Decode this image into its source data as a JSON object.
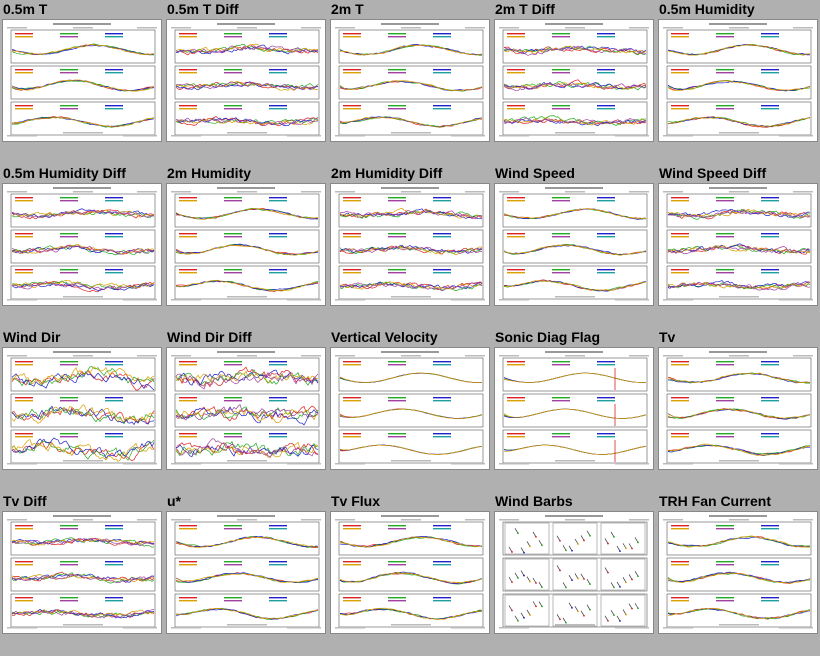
{
  "panels": [
    {
      "title": "0.5m T",
      "kind": "line",
      "diff": false
    },
    {
      "title": "0.5m T Diff",
      "kind": "line",
      "diff": true
    },
    {
      "title": "2m T",
      "kind": "line",
      "diff": false
    },
    {
      "title": "2m T Diff",
      "kind": "line",
      "diff": true
    },
    {
      "title": "0.5m Humidity",
      "kind": "line",
      "diff": false
    },
    {
      "title": "0.5m Humidity Diff",
      "kind": "line",
      "diff": true
    },
    {
      "title": "2m Humidity",
      "kind": "line",
      "diff": false
    },
    {
      "title": "2m Humidity Diff",
      "kind": "line",
      "diff": true
    },
    {
      "title": "Wind Speed",
      "kind": "line",
      "diff": false
    },
    {
      "title": "Wind Speed Diff",
      "kind": "line",
      "diff": true
    },
    {
      "title": "Wind Dir",
      "kind": "winddir",
      "diff": false
    },
    {
      "title": "Wind Dir Diff",
      "kind": "winddir",
      "diff": true
    },
    {
      "title": "Vertical Velocity",
      "kind": "flat",
      "diff": false
    },
    {
      "title": "Sonic Diag Flag",
      "kind": "flag",
      "diff": false
    },
    {
      "title": "Tv",
      "kind": "line",
      "diff": false
    },
    {
      "title": "Tv Diff",
      "kind": "line",
      "diff": true
    },
    {
      "title": "u*",
      "kind": "line",
      "diff": false
    },
    {
      "title": "Tv Flux",
      "kind": "line",
      "diff": false
    },
    {
      "title": "Wind Barbs",
      "kind": "barbs",
      "diff": false
    },
    {
      "title": "TRH Fan Current",
      "kind": "line",
      "diff": false
    }
  ],
  "series_colors": [
    "#d22",
    "#2a2",
    "#22c",
    "#d8a000",
    "#a040a0",
    "#20a0a0",
    "#e07000",
    "#444444"
  ],
  "icons": {
    "thumbnail": "plot-thumbnail-image"
  }
}
